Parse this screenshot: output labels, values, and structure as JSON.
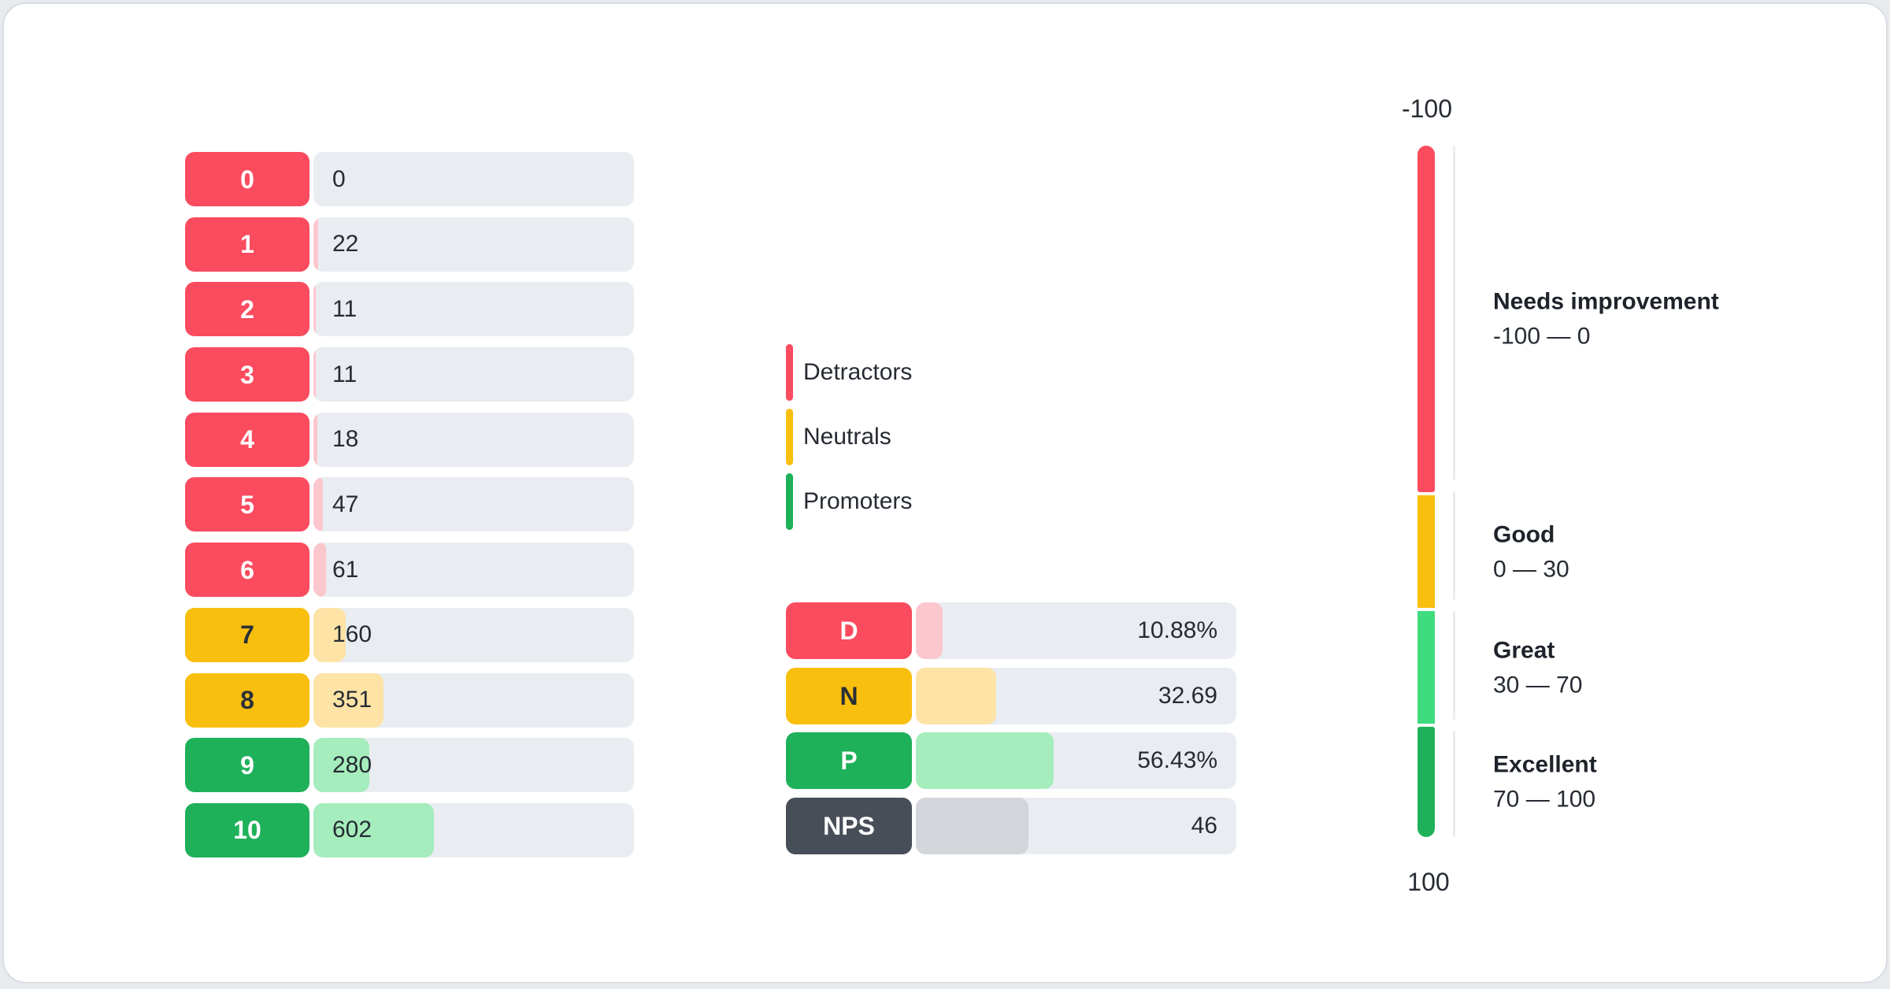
{
  "chart_data": [
    {
      "type": "bar",
      "orientation": "horizontal",
      "description_hint": "NPS score distribution, one row per score 0-10, fill proportional to responses",
      "categories": [
        "0",
        "1",
        "2",
        "3",
        "4",
        "5",
        "6",
        "7",
        "8",
        "9",
        "10"
      ],
      "values": [
        0,
        22,
        11,
        11,
        18,
        47,
        61,
        160,
        351,
        280,
        602
      ],
      "groups": [
        "detractor",
        "detractor",
        "detractor",
        "detractor",
        "detractor",
        "detractor",
        "detractor",
        "neutral",
        "neutral",
        "promoter",
        "promoter"
      ],
      "max_scale": 1600,
      "grid": false,
      "value_label_position": "left"
    },
    {
      "type": "bar",
      "orientation": "horizontal",
      "description_hint": "Detractors / Neutrals / Promoters percentages and resulting NPS",
      "categories": [
        "D",
        "N",
        "P",
        "NPS"
      ],
      "values": [
        10.88,
        32.69,
        56.43,
        46
      ],
      "display_values": [
        "10.88%",
        "32.69",
        "56.43%",
        "46"
      ],
      "groups": [
        "detractor",
        "neutral",
        "promoter",
        "nps"
      ],
      "max_scale": 131,
      "grid": false,
      "value_label_position": "right"
    },
    {
      "type": "gauge",
      "orientation": "vertical",
      "min_label": "-100",
      "max_label": "100",
      "segment_heights": [
        440,
        143,
        143,
        140
      ],
      "zones": [
        {
          "label": "Needs improvement",
          "range": "-100 — 0",
          "color": "#fa4b5f"
        },
        {
          "label": "Good",
          "range": "0 — 30",
          "color": "#f8bf0e"
        },
        {
          "label": "Great",
          "range": "30 — 70",
          "color": "#3edc7e"
        },
        {
          "label": "Excellent",
          "range": "70 — 100",
          "color": "#1fb15a"
        }
      ]
    }
  ],
  "legend": {
    "items": [
      {
        "label": "Detractors",
        "color": "#fa4b5f"
      },
      {
        "label": "Neutrals",
        "color": "#f8bf0e"
      },
      {
        "label": "Promoters",
        "color": "#1fb15a"
      }
    ]
  },
  "palette": {
    "detractor": {
      "badge": "#fa4b5f",
      "fill": "#fcc6cd",
      "text": "#ffffff"
    },
    "neutral": {
      "badge": "#f8bf0e",
      "fill": "#fde3a6",
      "text": "#2b3038"
    },
    "promoter": {
      "badge": "#1fb15a",
      "fill": "#a5edbc",
      "text": "#ffffff"
    },
    "nps": {
      "badge": "#474e58",
      "fill": "#d2d6da",
      "text": "#ffffff"
    },
    "track": "#e9edf2",
    "tick_line": "#e9edf0"
  }
}
